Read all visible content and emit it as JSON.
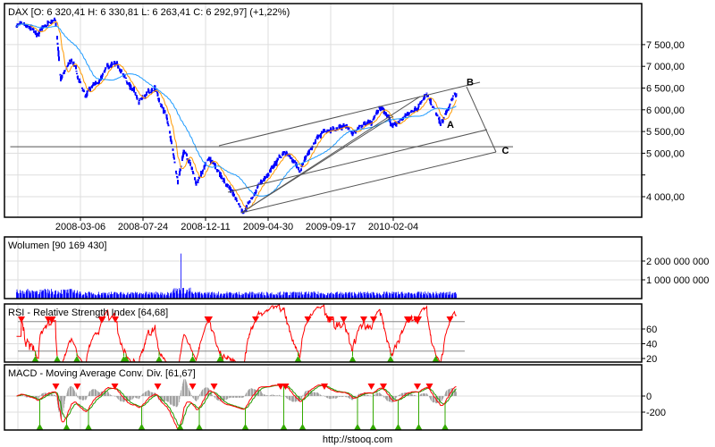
{
  "footer": "http://stooq.com",
  "colors": {
    "price": "#0000ff",
    "ma_short": "#ff9900",
    "ma_long": "#1e9bff",
    "volume": "#0000ff",
    "rsi": "#ff0000",
    "macd": "#ff0000",
    "signal": "#229900",
    "hist": "#a0a0a0",
    "sell_marker": "#ff0000",
    "buy_marker": "#33aa00",
    "grid": "#dddddd"
  },
  "chart_data": [
    {
      "panel": "price",
      "type": "line",
      "title": "DAX [O: 6 320,41  H: 6 330,81  L: 6 263,41  C: 6 292,97] (+1,22%)",
      "x_ticks": [
        "2008-03-06",
        "2008-07-24",
        "2008-12-11",
        "2009-04-30",
        "2009-09-17",
        "2010-02-04"
      ],
      "y_ticks": [
        7500,
        7000,
        6500,
        6000,
        5500,
        5000,
        4000
      ],
      "y_tick_labels": [
        "7 500,00",
        "7 000,00",
        "6 500,00",
        "6 000,00",
        "5 500,00",
        "5 000,00",
        "4 000,00"
      ],
      "ylim": [
        3450,
        8350
      ],
      "grid": true,
      "price_anchors": [
        [
          "2007-10-15",
          7950
        ],
        [
          "2007-12-01",
          7750
        ],
        [
          "2008-01-10",
          8070
        ],
        [
          "2008-01-22",
          6680
        ],
        [
          "2008-02-15",
          7090
        ],
        [
          "2008-03-17",
          6300
        ],
        [
          "2008-05-20",
          7130
        ],
        [
          "2008-07-15",
          6260
        ],
        [
          "2008-08-20",
          6470
        ],
        [
          "2008-09-15",
          5850
        ],
        [
          "2008-10-10",
          4410
        ],
        [
          "2008-10-25",
          5130
        ],
        [
          "2008-11-20",
          4310
        ],
        [
          "2008-12-20",
          4820
        ],
        [
          "2009-01-15",
          4510
        ],
        [
          "2009-03-05",
          3690
        ],
        [
          "2009-04-15",
          4310
        ],
        [
          "2009-06-05",
          5030
        ],
        [
          "2009-07-10",
          4620
        ],
        [
          "2009-08-20",
          5440
        ],
        [
          "2009-10-20",
          5650
        ],
        [
          "2009-11-05",
          5440
        ],
        [
          "2010-01-10",
          6020
        ],
        [
          "2010-02-05",
          5600
        ],
        [
          "2010-04-20",
          6300
        ],
        [
          "2010-05-20",
          5650
        ],
        [
          "2010-06-25",
          6390
        ]
      ],
      "trend_lines": [
        [
          [
            "2007-10-01",
            5150
          ],
          [
            "2010-10-30",
            5150
          ]
        ],
        [
          [
            "2009-01-10",
            5173
          ],
          [
            "2010-08-17",
            6634
          ]
        ],
        [
          [
            "2009-01-30",
            4103
          ],
          [
            "2010-09-02",
            5543
          ]
        ],
        [
          [
            "2009-03-01",
            3630
          ],
          [
            "2010-09-22",
            5029
          ]
        ],
        [
          [
            "2009-03-01",
            3630
          ],
          [
            "2010-04-05",
            6305
          ]
        ],
        [
          [
            "2009-03-01",
            3630
          ],
          [
            "2010-02-04",
            5852
          ]
        ],
        [
          [
            "2010-07-18",
            6531
          ],
          [
            "2010-09-22",
            5029
          ]
        ]
      ],
      "annotations": [
        {
          "text": "A",
          "x": "2010-06-04",
          "y": 5585
        },
        {
          "text": "B",
          "x": "2010-07-18",
          "y": 6560
        },
        {
          "text": "C",
          "x": "2010-10-05",
          "y": 4990
        }
      ]
    },
    {
      "panel": "volume",
      "type": "bar",
      "title": "Wolumen [90 169 430]",
      "y_ticks": [
        2000000000,
        1000000000
      ],
      "y_tick_labels": [
        "2 000 000 000",
        "1 000 000 000"
      ],
      "ylim": [
        0,
        3000000000
      ],
      "typical_volume": 250000000,
      "peak": {
        "x": "2008-10-17",
        "value": 2400000000
      }
    },
    {
      "panel": "rsi",
      "type": "line",
      "title": "RSI - Relative Strength Index [64,68]",
      "y_ticks": [
        60,
        40,
        20
      ],
      "levels": [
        70,
        30
      ],
      "ylim": [
        12,
        85
      ],
      "last_value": 64.68
    },
    {
      "panel": "macd",
      "type": "line",
      "title": "MACD - Moving Average Conv. Div. [61,67]",
      "y_ticks": [
        0,
        -200
      ],
      "ylim": [
        -420,
        380
      ],
      "last_value": 61.67
    }
  ]
}
